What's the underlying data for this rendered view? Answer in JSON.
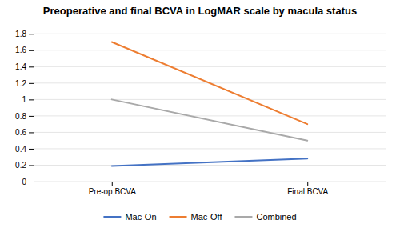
{
  "chart_data": {
    "type": "line",
    "title": "Preoperative and final BCVA in LogMAR scale by macula status",
    "categories": [
      "Pre-op BCVA",
      "Final BCVA"
    ],
    "series": [
      {
        "name": "Mac-On",
        "color": "#4472C4",
        "values": [
          0.19,
          0.28
        ]
      },
      {
        "name": "Mac-Off",
        "color": "#ED7D31",
        "values": [
          1.7,
          0.7
        ]
      },
      {
        "name": "Combined",
        "color": "#A9A9A9",
        "values": [
          1.0,
          0.5
        ]
      }
    ],
    "ylim": [
      0,
      1.9
    ],
    "yticks": [
      0,
      0.2,
      0.4,
      0.6,
      0.8,
      1,
      1.2,
      1.4,
      1.6,
      1.8
    ],
    "grid": true,
    "legend": "bottom"
  }
}
